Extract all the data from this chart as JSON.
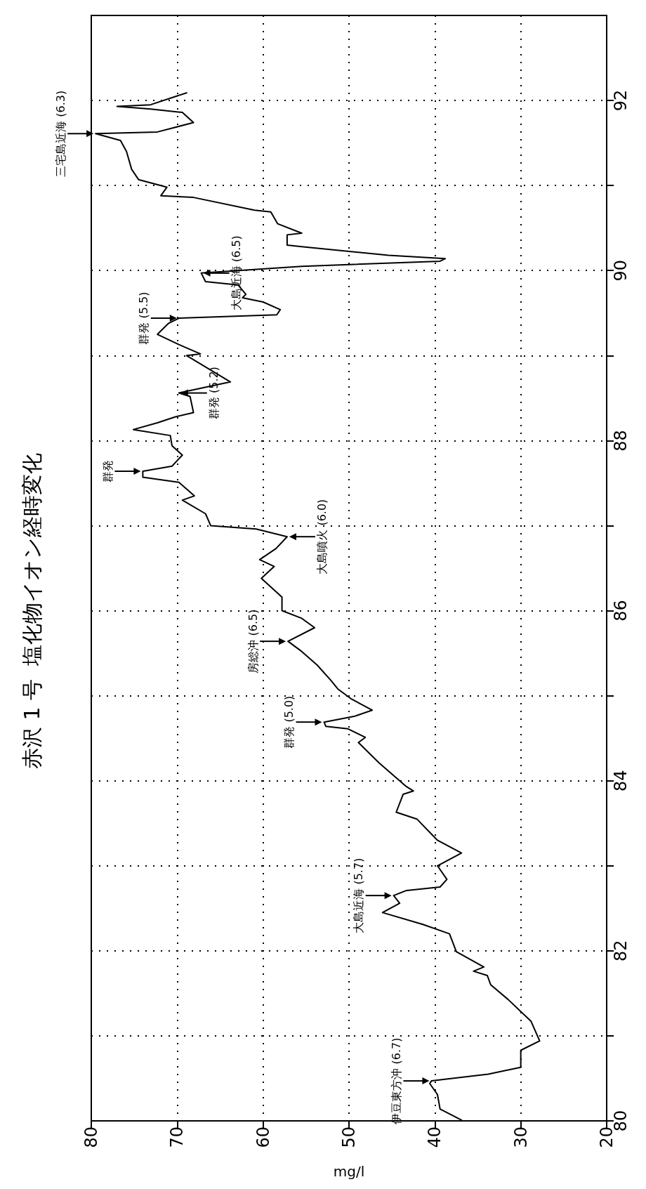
{
  "chart_data": {
    "type": "line",
    "title": "赤沢 1 号  塩化物イオン経時変化",
    "xlabel": "mg/l",
    "x": [
      36.9,
      39.4,
      39.7,
      40.6,
      40.4,
      33.8,
      30.0,
      30.0,
      27.8,
      28.8,
      31.5,
      33.5,
      33.9,
      35.5,
      34.3,
      37.5,
      38.3,
      41.4,
      46.1,
      44.1,
      44.8,
      43.3,
      39.4,
      38.6,
      39.7,
      36.9,
      39.7,
      42.1,
      44.5,
      43.7,
      42.5,
      43.3,
      46.5,
      48.9,
      48.1,
      50.1,
      52.7,
      52.9,
      49.3,
      47.3,
      49.7,
      51.3,
      52.1,
      53.7,
      55.5,
      57.1,
      54.0,
      55.5,
      57.8,
      57.8,
      60.2,
      58.7,
      60.4,
      58.5,
      57.2,
      60.8,
      66.1,
      66.7,
      69.4,
      68.0,
      69.8,
      74.0,
      74.0,
      70.6,
      69.4,
      70.6,
      70.8,
      75.1,
      72.3,
      70.2,
      68.1,
      68.5,
      69.8,
      63.8,
      68.9,
      67.3,
      69.8,
      72.3,
      71.0,
      69.8,
      58.4,
      58.0,
      60.0,
      62.4,
      62.0,
      62.9,
      66.7,
      67.2,
      55.5,
      39.4,
      38.8,
      45.4,
      55.5,
      57.2,
      57.2,
      55.5,
      58.3,
      59.1,
      61.0,
      68.1,
      71.9,
      71.2,
      74.5,
      75.3,
      75.9,
      76.6,
      79.5,
      72.3,
      68.1,
      69.4,
      73.1,
      77.0,
      73.1,
      68.9
    ],
    "series": [
      {
        "color": "#000000",
        "values": [
          80.01,
          80.14,
          80.31,
          80.44,
          80.47,
          80.55,
          80.63,
          80.83,
          80.94,
          81.17,
          81.43,
          81.6,
          81.71,
          81.76,
          81.81,
          81.99,
          82.2,
          82.31,
          82.45,
          82.56,
          82.65,
          82.71,
          82.75,
          82.84,
          83.0,
          83.15,
          83.3,
          83.55,
          83.63,
          83.84,
          83.88,
          83.93,
          84.21,
          84.45,
          84.51,
          84.61,
          84.64,
          84.69,
          84.76,
          84.83,
          84.96,
          85.08,
          85.18,
          85.36,
          85.52,
          85.64,
          85.8,
          85.91,
          86.0,
          86.16,
          86.38,
          86.52,
          86.6,
          86.73,
          86.87,
          86.96,
          87.0,
          87.14,
          87.3,
          87.35,
          87.51,
          87.57,
          87.64,
          87.7,
          87.83,
          87.94,
          88.06,
          88.13,
          88.21,
          88.28,
          88.33,
          88.52,
          88.56,
          88.69,
          89.0,
          89.02,
          89.13,
          89.25,
          89.38,
          89.44,
          89.48,
          89.54,
          89.63,
          89.68,
          89.72,
          89.83,
          89.87,
          89.97,
          90.05,
          90.11,
          90.14,
          90.18,
          90.28,
          90.3,
          90.42,
          90.44,
          90.55,
          90.69,
          90.71,
          90.86,
          90.88,
          90.98,
          91.07,
          91.19,
          91.4,
          91.53,
          91.61,
          91.63,
          91.74,
          91.86,
          91.9,
          91.93,
          91.95,
          92.09
        ]
      }
    ],
    "xlim": [
      80,
      20
    ],
    "xticks": [
      80,
      70,
      60,
      50,
      40,
      30,
      20
    ],
    "ylim": [
      80,
      93
    ],
    "yticks": [
      80,
      {
        "value": 81,
        "label": null
      },
      82,
      {
        "value": 83,
        "label": null
      },
      84,
      {
        "value": 85,
        "label": null
      },
      86,
      {
        "value": 87,
        "label": null
      },
      88,
      {
        "value": 89,
        "label": null
      },
      90,
      {
        "value": 91,
        "label": null
      },
      92
    ],
    "grid": true,
    "annotations": [
      {
        "text": "伊豆東方沖 (6.7)",
        "x": 40.4,
        "y": 80.47
      },
      {
        "text": "大島近海 (5.7)",
        "x": 44.8,
        "y": 82.65
      },
      {
        "text": "群発 (5.0)",
        "x": 52.9,
        "y": 84.69
      },
      {
        "text": "房総沖 (6.5)",
        "x": 57.1,
        "y": 85.64
      },
      {
        "text": "大島噴火 (6.0)",
        "x": 57.2,
        "y": 86.87
      },
      {
        "text": "群発",
        "x": 74.0,
        "y": 87.64
      },
      {
        "text": "群発 (5.2)",
        "x": 69.8,
        "y": 88.56
      },
      {
        "text": "群発 (5.5)",
        "x": 69.8,
        "y": 89.44
      },
      {
        "text": "大島近海 (6.5)",
        "x": 67.2,
        "y": 89.97
      },
      {
        "text": "三宅島近海 (6.3)",
        "x": 79.5,
        "y": 91.61
      }
    ]
  }
}
